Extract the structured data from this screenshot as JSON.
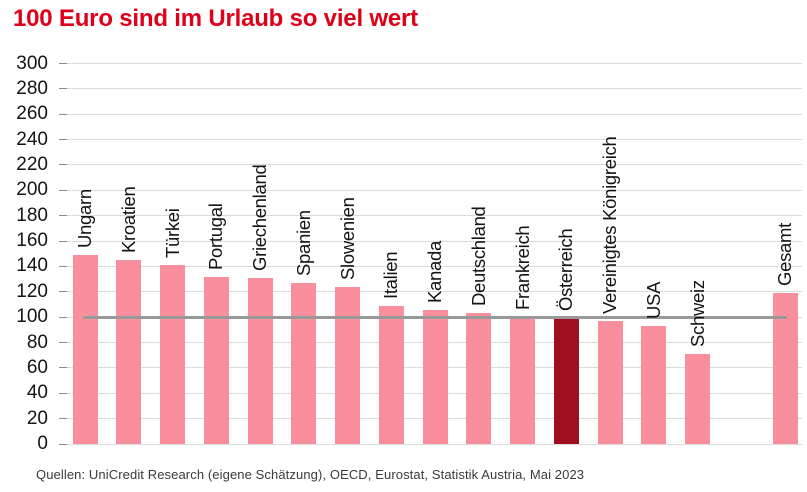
{
  "title": "100 Euro sind im Urlaub so viel wert",
  "source": "Quellen: UniCredit Research (eigene Schätzung), OECD, Eurostat, Statistik Austria, Mai 2023",
  "colors": {
    "title_red": "#df0019",
    "bar_pink": "#f98f9d",
    "bar_highlight_dark_red": "#a00d1e",
    "reference_line_gray": "#999999",
    "gridline_gray": "#dbdbdb",
    "axis_text": "#141414",
    "source_text": "#3a3a3a"
  },
  "chart_data": {
    "type": "bar",
    "title": "100 Euro sind im Urlaub so viel wert",
    "categories": [
      "Ungarn",
      "Kroatien",
      "Türkei",
      "Portugal",
      "Griechenland",
      "Spanien",
      "Slowenien",
      "Italien",
      "Kanada",
      "Deutschland",
      "Frankreich",
      "Österreich",
      "Vereinigtes Königreich",
      "USA",
      "Schweiz",
      "Gesamt"
    ],
    "values": [
      149,
      145,
      141,
      132,
      131,
      127,
      124,
      109,
      106,
      103,
      100,
      99,
      97,
      93,
      71,
      119
    ],
    "highlighted_category": "Österreich",
    "reference_line": 100,
    "ylim": [
      0,
      300
    ],
    "ytick_step": 20,
    "xlabel": "",
    "ylabel": "",
    "grid": "horizontal",
    "legend": "none",
    "bar_label_rotation": 90,
    "gap_before_last_category": true
  }
}
